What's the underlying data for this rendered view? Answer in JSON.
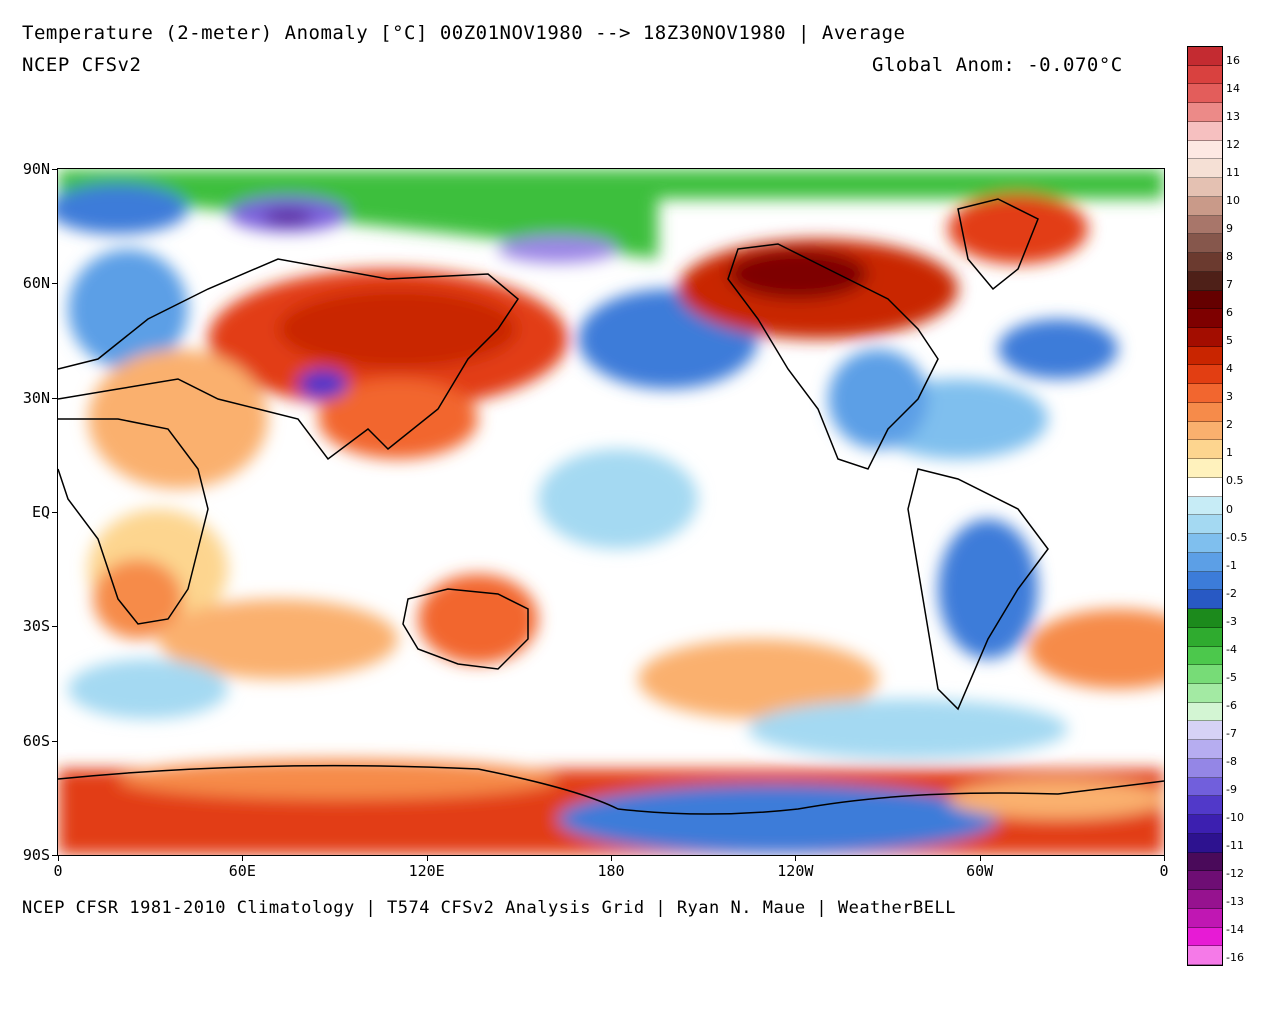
{
  "header": {
    "title": "Temperature (2-meter) Anomaly  [°C] 00Z01NOV1980 --> 18Z30NOV1980 | Average",
    "model": "NCEP CFSv2",
    "global_anom": "Global Anom: -0.070°C"
  },
  "footer": {
    "credit": "NCEP CFSR 1981-2010 Climatology | T574 CFSv2 Analysis Grid | Ryan N. Maue | WeatherBELL"
  },
  "map": {
    "lat_labels": [
      "90N",
      "60N",
      "30N",
      "EQ",
      "30S",
      "60S",
      "90S"
    ],
    "lon_labels": [
      "0",
      "60E",
      "120E",
      "180",
      "120W",
      "60W",
      "0"
    ]
  },
  "colorbar": {
    "labels": [
      "16",
      "14",
      "13",
      "12",
      "11",
      "10",
      "9",
      "8",
      "7",
      "6",
      "5",
      "4",
      "3",
      "2",
      "1",
      "0.5",
      "0",
      "-0.5",
      "-1",
      "-2",
      "-3",
      "-4",
      "-5",
      "-6",
      "-7",
      "-8",
      "-9",
      "-10",
      "-11",
      "-12",
      "-13",
      "-14",
      "-16"
    ],
    "colors": [
      "#c42b31",
      "#d9413f",
      "#e35d5b",
      "#ec8a88",
      "#f6c0c0",
      "#fde8e3",
      "#f5e0d5",
      "#e4c1b2",
      "#c99a89",
      "#a8766a",
      "#86574c",
      "#6b3a2f",
      "#4e2018",
      "#650000",
      "#7e0000",
      "#a30d00",
      "#c92500",
      "#e23e12",
      "#f2662f",
      "#f68b4a",
      "#fab06e",
      "#fdd58f",
      "#fff2bd",
      "#ffffff",
      "#c7ecf6",
      "#a4d9f2",
      "#7fbfee",
      "#5c9fe6",
      "#3c7cd9",
      "#2859c4",
      "#1c8a1c",
      "#2fab2f",
      "#4cc84c",
      "#77dc77",
      "#a3eaa3",
      "#d3f5d3",
      "#d6d2f6",
      "#b6adf0",
      "#9486e6",
      "#715fdc",
      "#5139c9",
      "#3c1fb0",
      "#2d128f",
      "#4a0a5a",
      "#6e0e74",
      "#96128f",
      "#c017b3",
      "#e71bd5",
      "#f57ae8"
    ]
  }
}
